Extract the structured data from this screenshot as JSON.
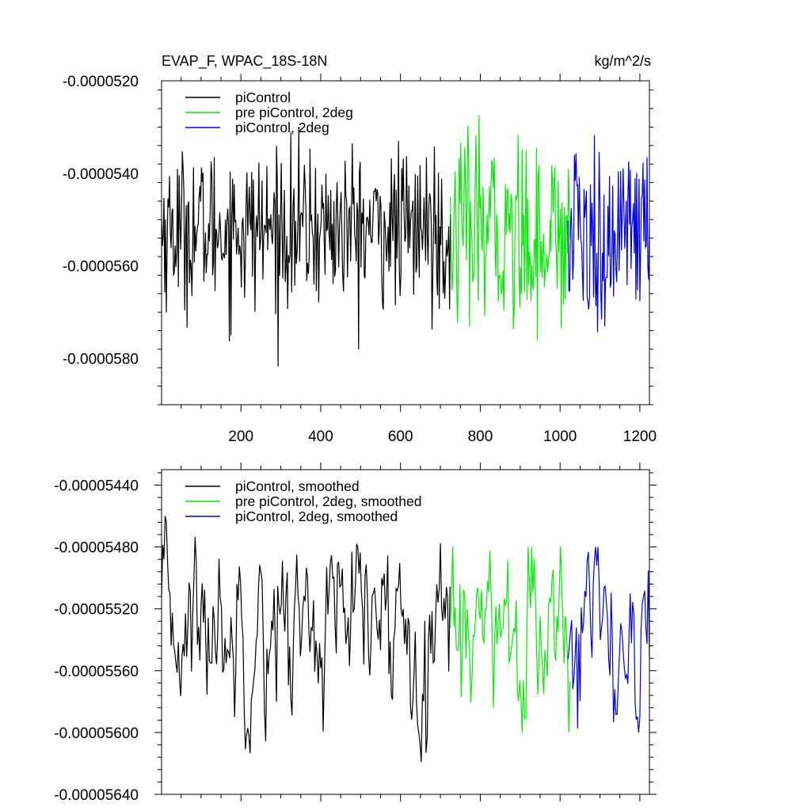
{
  "header": {
    "title": "EVAP_F, WPAC_18S-18N",
    "units": "kg/m^2/s"
  },
  "colors": {
    "piControl": "#000000",
    "prePiControl2deg": "#00ee00",
    "piControl2deg": "#0000ee",
    "axis": "#000000"
  },
  "chart_data": [
    {
      "type": "line",
      "title": "EVAP_F, WPAC_18S-18N",
      "units_label": "kg/m^2/s",
      "xlabel": "",
      "ylabel": "",
      "xlim": [
        1,
        1224
      ],
      "ylim": [
        -5.9e-05,
        -5.2e-05
      ],
      "grid": false,
      "legend_position": "top-left",
      "xticks": [
        200,
        400,
        600,
        800,
        1000,
        1200
      ],
      "xtick_labels": [
        "200",
        "400",
        "600",
        "800",
        "1000",
        "1200"
      ],
      "yticks": [
        -5.2e-05,
        -5.4e-05,
        -5.6e-05,
        -5.8e-05
      ],
      "ytick_labels": [
        "-0.0000520",
        "-0.0000540",
        "-0.0000560",
        "-0.0000580"
      ],
      "series": [
        {
          "name": "piControl",
          "color": "#000000",
          "x_range": [
            1,
            725
          ],
          "mean": -5.52e-05,
          "std": 8.5e-07,
          "min": -5.86e-05,
          "max": -5.28e-05,
          "step": 2
        },
        {
          "name": "pre piControl, 2deg",
          "color": "#00ee00",
          "x_range": [
            725,
            1025
          ],
          "mean": -5.53e-05,
          "std": 1e-06,
          "min": -5.84e-05,
          "max": -5.24e-05,
          "step": 2
        },
        {
          "name": "piControl, 2deg",
          "color": "#0000ee",
          "x_range": [
            1020,
            1224
          ],
          "mean": -5.54e-05,
          "std": 1e-06,
          "min": -5.86e-05,
          "max": -5.27e-05,
          "step": 2
        }
      ]
    },
    {
      "type": "line",
      "title": "",
      "xlabel": "",
      "ylabel": "",
      "xlim": [
        1,
        1224
      ],
      "ylim": [
        -5.64e-05,
        -5.43e-05
      ],
      "grid": false,
      "legend_position": "top-left",
      "xticks": [
        200,
        400,
        600,
        800,
        1000,
        1200
      ],
      "xtick_labels": [],
      "yticks": [
        -5.44e-05,
        -5.48e-05,
        -5.52e-05,
        -5.56e-05,
        -5.6e-05,
        -5.64e-05
      ],
      "ytick_labels": [
        "-0.00005440",
        "-0.00005480",
        "-0.00005520",
        "-0.00005560",
        "-0.00005600",
        "-0.00005640"
      ],
      "series": [
        {
          "name": "piControl, smoothed",
          "color": "#000000",
          "x_range": [
            1,
            725
          ],
          "mean": -5.53e-05,
          "std": 2.8e-07,
          "min": -5.62e-05,
          "max": -5.46e-05,
          "step": 3
        },
        {
          "name": "pre piControl, 2deg, smoothed",
          "color": "#00ee00",
          "x_range": [
            725,
            1025
          ],
          "mean": -5.54e-05,
          "std": 3e-07,
          "min": -5.6e-05,
          "max": -5.48e-05,
          "step": 3
        },
        {
          "name": "piControl, 2deg, smoothed",
          "color": "#0000ee",
          "x_range": [
            1020,
            1224
          ],
          "mean": -5.54e-05,
          "std": 3e-07,
          "min": -5.6e-05,
          "max": -5.48e-05,
          "step": 3
        }
      ]
    }
  ]
}
